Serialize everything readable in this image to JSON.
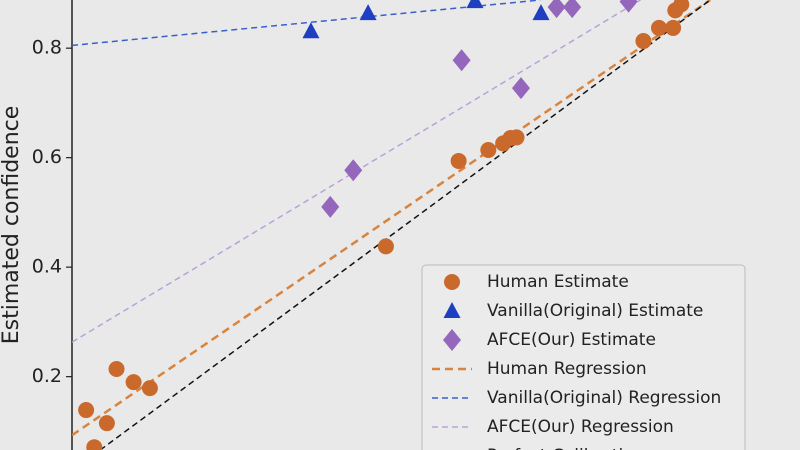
{
  "chart_data": {
    "type": "scatter",
    "y_label": "Estimated confidence",
    "xlim": [
      0.028,
      1.009
    ],
    "ylim": [
      0.066,
      0.888
    ],
    "yticks": [
      0.2,
      0.4,
      0.6,
      0.8
    ],
    "series": [
      {
        "name": "Human Estimate",
        "type": "scatter",
        "marker": "circle",
        "color": "#c9692c",
        "x": [
          0.047,
          0.058,
          0.075,
          0.088,
          0.111,
          0.133,
          0.451,
          0.549,
          0.589,
          0.609,
          0.619,
          0.627,
          0.798,
          0.819,
          0.838,
          0.841,
          0.849
        ],
        "values": [
          0.139,
          0.071,
          0.115,
          0.214,
          0.19,
          0.179,
          0.438,
          0.594,
          0.614,
          0.626,
          0.636,
          0.637,
          0.813,
          0.837,
          0.837,
          0.869,
          0.88
        ]
      },
      {
        "name": "Vanilla(Original) Estimate",
        "type": "scatter",
        "marker": "triangle",
        "color": "#1f3fc2",
        "x": [
          0.35,
          0.427,
          0.571,
          0.66
        ],
        "values": [
          0.831,
          0.864,
          0.886,
          0.864
        ]
      },
      {
        "name": "AFCE(Our) Estimate",
        "type": "scatter",
        "marker": "diamond",
        "color": "#9467bd",
        "x": [
          0.376,
          0.407,
          0.553,
          0.633,
          0.681,
          0.702,
          0.778
        ],
        "values": [
          0.51,
          0.577,
          0.778,
          0.727,
          0.875,
          0.875,
          0.885
        ]
      },
      {
        "name": "Human Regression",
        "type": "line",
        "linestyle": "8,5",
        "width": 2.5,
        "color": "#d8843f",
        "x": [
          0.028,
          0.888
        ],
        "values": [
          0.093,
          0.888
        ]
      },
      {
        "name": "Vanilla(Original) Regression",
        "type": "line",
        "linestyle": "6,4",
        "width": 1.5,
        "color": "#3a5fcd",
        "x": [
          0.028,
          0.659
        ],
        "values": [
          0.805,
          0.888
        ]
      },
      {
        "name": "AFCE(Our) Regression",
        "type": "line",
        "linestyle": "6,4",
        "width": 1.5,
        "color": "#b9a2d8",
        "x": [
          0.028,
          0.794
        ],
        "values": [
          0.263,
          0.888
        ]
      },
      {
        "name": "Perfect Calibration",
        "type": "line",
        "linestyle": "6,4",
        "width": 1.5,
        "color": "#111111",
        "x": [
          0.066,
          0.888
        ],
        "values": [
          0.066,
          0.888
        ]
      }
    ]
  }
}
